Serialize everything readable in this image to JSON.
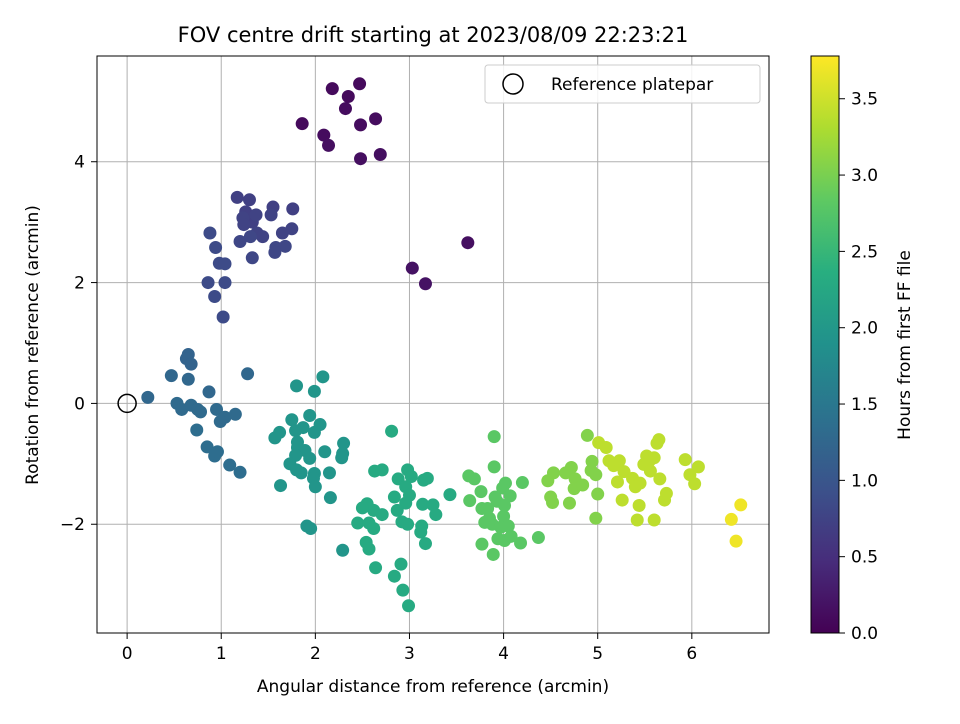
{
  "chart_data": {
    "type": "scatter",
    "title": "FOV centre drift starting at 2023/08/09 22:23:21",
    "xlabel": "Angular distance from reference (arcmin)",
    "ylabel": "Rotation from reference (arcmin)",
    "xlim": [
      -0.32,
      6.82
    ],
    "ylim": [
      -3.8,
      5.75
    ],
    "x_ticks": [
      0,
      1,
      2,
      3,
      4,
      5,
      6
    ],
    "y_ticks": [
      -2,
      0,
      2,
      4
    ],
    "grid": true,
    "legend": {
      "position": "top-right",
      "entries": [
        "Reference platepar"
      ]
    },
    "reference_point": {
      "x": 0,
      "y": 0,
      "label": "Reference platepar"
    },
    "colorbar": {
      "label": "Hours from first FF file",
      "colormap": "viridis",
      "range": [
        0.0,
        3.78
      ],
      "ticks": [
        "0.0",
        "0.5",
        "1.0",
        "1.5",
        "2.0",
        "2.5",
        "3.0",
        "3.5"
      ]
    },
    "points": [
      [
        1.86,
        4.63,
        0.1
      ],
      [
        2.18,
        5.21,
        0.1
      ],
      [
        2.35,
        5.08,
        0.1
      ],
      [
        2.47,
        5.29,
        0.1
      ],
      [
        2.32,
        4.88,
        0.12
      ],
      [
        2.64,
        4.71,
        0.12
      ],
      [
        2.09,
        4.44,
        0.12
      ],
      [
        2.48,
        4.61,
        0.12
      ],
      [
        2.14,
        4.27,
        0.15
      ],
      [
        2.48,
        4.05,
        0.15
      ],
      [
        2.69,
        4.12,
        0.15
      ],
      [
        3.62,
        2.66,
        0.15
      ],
      [
        3.03,
        2.24,
        0.18
      ],
      [
        3.17,
        1.98,
        0.18
      ],
      [
        1.17,
        3.41,
        0.72
      ],
      [
        1.3,
        3.37,
        0.72
      ],
      [
        1.26,
        3.17,
        0.72
      ],
      [
        1.33,
        3.0,
        0.72
      ],
      [
        1.55,
        3.25,
        0.72
      ],
      [
        1.76,
        3.22,
        0.72
      ],
      [
        1.23,
        3.07,
        0.75
      ],
      [
        1.37,
        3.12,
        0.75
      ],
      [
        1.53,
        3.12,
        0.75
      ],
      [
        1.24,
        2.96,
        0.75
      ],
      [
        1.38,
        2.82,
        0.75
      ],
      [
        1.44,
        2.76,
        0.75
      ],
      [
        1.65,
        2.82,
        0.75
      ],
      [
        1.75,
        2.89,
        0.75
      ],
      [
        1.2,
        2.68,
        0.8
      ],
      [
        1.31,
        2.76,
        0.8
      ],
      [
        1.58,
        2.58,
        0.8
      ],
      [
        1.68,
        2.6,
        0.8
      ],
      [
        1.33,
        2.41,
        0.8
      ],
      [
        1.57,
        2.5,
        0.8
      ],
      [
        0.88,
        2.82,
        0.85
      ],
      [
        0.94,
        2.58,
        0.85
      ],
      [
        0.98,
        2.32,
        0.85
      ],
      [
        1.04,
        2.31,
        0.85
      ],
      [
        0.86,
        2.0,
        0.85
      ],
      [
        1.04,
        2.0,
        0.85
      ],
      [
        0.93,
        1.77,
        0.85
      ],
      [
        1.02,
        1.43,
        0.85
      ],
      [
        0.65,
        0.81,
        1.2
      ],
      [
        0.63,
        0.74,
        1.2
      ],
      [
        0.68,
        0.65,
        1.2
      ],
      [
        0.65,
        0.4,
        1.25
      ],
      [
        0.47,
        0.46,
        1.25
      ],
      [
        0.87,
        0.19,
        1.25
      ],
      [
        1.28,
        0.49,
        1.25
      ],
      [
        0.22,
        0.1,
        1.25
      ],
      [
        0.53,
        0.0,
        1.3
      ],
      [
        0.58,
        -0.1,
        1.3
      ],
      [
        0.68,
        -0.03,
        1.3
      ],
      [
        0.75,
        -0.1,
        1.3
      ],
      [
        0.78,
        -0.14,
        1.3
      ],
      [
        0.95,
        -0.1,
        1.3
      ],
      [
        1.04,
        -0.23,
        1.3
      ],
      [
        1.15,
        -0.18,
        1.3
      ],
      [
        0.99,
        -0.3,
        1.3
      ],
      [
        0.74,
        -0.44,
        1.35
      ],
      [
        0.85,
        -0.72,
        1.35
      ],
      [
        0.93,
        -0.87,
        1.35
      ],
      [
        0.96,
        -0.8,
        1.35
      ],
      [
        1.09,
        -1.02,
        1.35
      ],
      [
        1.2,
        -1.14,
        1.35
      ],
      [
        1.8,
        0.29,
        1.95
      ],
      [
        1.99,
        0.2,
        1.95
      ],
      [
        2.08,
        0.44,
        1.95
      ],
      [
        1.94,
        -0.2,
        1.95
      ],
      [
        1.75,
        -0.27,
        1.95
      ],
      [
        1.87,
        -0.4,
        1.95
      ],
      [
        1.79,
        -0.45,
        1.95
      ],
      [
        2.05,
        -0.35,
        1.95
      ],
      [
        1.99,
        -0.48,
        1.95
      ],
      [
        1.62,
        -0.48,
        1.95
      ],
      [
        1.57,
        -0.57,
        1.95
      ],
      [
        1.81,
        -0.64,
        1.95
      ],
      [
        1.81,
        -0.73,
        1.95
      ],
      [
        1.89,
        -0.78,
        1.95
      ],
      [
        1.79,
        -0.86,
        1.95
      ],
      [
        1.94,
        -0.91,
        1.95
      ],
      [
        2.1,
        -0.8,
        1.95
      ],
      [
        2.3,
        -0.66,
        1.95
      ],
      [
        2.29,
        -0.83,
        1.95
      ],
      [
        2.28,
        -0.9,
        1.95
      ],
      [
        1.73,
        -1.0,
        1.95
      ],
      [
        1.8,
        -1.1,
        1.95
      ],
      [
        1.85,
        -1.15,
        1.95
      ],
      [
        1.99,
        -1.16,
        1.95
      ],
      [
        1.98,
        -1.24,
        1.95
      ],
      [
        2.15,
        -1.15,
        1.95
      ],
      [
        1.63,
        -1.36,
        1.95
      ],
      [
        2.0,
        -1.38,
        1.95
      ],
      [
        2.16,
        -1.56,
        1.95
      ],
      [
        1.91,
        -2.03,
        1.95
      ],
      [
        1.95,
        -2.07,
        1.95
      ],
      [
        2.29,
        -2.43,
        1.95
      ],
      [
        2.81,
        -0.46,
        2.3
      ],
      [
        2.63,
        -1.12,
        2.3
      ],
      [
        2.71,
        -1.1,
        2.3
      ],
      [
        2.88,
        -1.25,
        2.3
      ],
      [
        2.98,
        -1.1,
        2.3
      ],
      [
        3.02,
        -1.21,
        2.3
      ],
      [
        2.96,
        -1.38,
        2.3
      ],
      [
        3.15,
        -1.27,
        2.3
      ],
      [
        3.19,
        -1.24,
        2.3
      ],
      [
        3.0,
        -1.52,
        2.3
      ],
      [
        2.84,
        -1.55,
        2.3
      ],
      [
        2.96,
        -1.65,
        2.3
      ],
      [
        2.62,
        -1.77,
        2.3
      ],
      [
        2.71,
        -1.84,
        2.3
      ],
      [
        2.87,
        -1.77,
        2.3
      ],
      [
        2.55,
        -1.66,
        2.3
      ],
      [
        2.5,
        -1.73,
        2.3
      ],
      [
        2.45,
        -1.98,
        2.3
      ],
      [
        2.57,
        -1.98,
        2.3
      ],
      [
        2.62,
        -2.07,
        2.3
      ],
      [
        3.14,
        -1.67,
        2.3
      ],
      [
        3.25,
        -1.68,
        2.3
      ],
      [
        3.43,
        -1.51,
        2.3
      ],
      [
        3.28,
        -1.84,
        2.3
      ],
      [
        2.92,
        -1.96,
        2.3
      ],
      [
        2.98,
        -2.0,
        2.3
      ],
      [
        3.13,
        -2.03,
        2.3
      ],
      [
        3.12,
        -2.13,
        2.3
      ],
      [
        3.17,
        -2.32,
        2.3
      ],
      [
        2.54,
        -2.3,
        2.3
      ],
      [
        2.57,
        -2.41,
        2.3
      ],
      [
        2.64,
        -2.72,
        2.3
      ],
      [
        2.91,
        -2.66,
        2.3
      ],
      [
        2.84,
        -2.86,
        2.3
      ],
      [
        2.93,
        -3.09,
        2.3
      ],
      [
        2.99,
        -3.35,
        2.3
      ],
      [
        3.9,
        -0.55,
        2.8
      ],
      [
        3.9,
        -1.05,
        2.8
      ],
      [
        3.63,
        -1.2,
        2.8
      ],
      [
        3.69,
        -1.25,
        2.8
      ],
      [
        3.76,
        -1.46,
        2.8
      ],
      [
        3.64,
        -1.61,
        2.8
      ],
      [
        3.77,
        -1.74,
        2.8
      ],
      [
        3.83,
        -1.74,
        2.8
      ],
      [
        3.91,
        -1.55,
        2.8
      ],
      [
        3.93,
        -1.62,
        2.8
      ],
      [
        3.99,
        -1.4,
        2.8
      ],
      [
        4.02,
        -1.32,
        2.8
      ],
      [
        4.07,
        -1.53,
        2.8
      ],
      [
        4.01,
        -1.69,
        2.8
      ],
      [
        4.0,
        -1.87,
        2.8
      ],
      [
        3.85,
        -1.9,
        2.8
      ],
      [
        3.8,
        -1.97,
        2.8
      ],
      [
        3.88,
        -2.0,
        2.8
      ],
      [
        3.97,
        -2.05,
        2.8
      ],
      [
        4.05,
        -2.03,
        2.8
      ],
      [
        3.94,
        -2.24,
        2.8
      ],
      [
        4.01,
        -2.27,
        2.8
      ],
      [
        4.08,
        -2.2,
        2.8
      ],
      [
        4.18,
        -2.31,
        2.8
      ],
      [
        4.37,
        -2.22,
        2.8
      ],
      [
        3.77,
        -2.33,
        2.8
      ],
      [
        3.89,
        -2.5,
        2.8
      ],
      [
        4.2,
        -1.31,
        2.8
      ],
      [
        4.72,
        -1.06,
        3.05
      ],
      [
        4.66,
        -1.15,
        3.05
      ],
      [
        4.76,
        -1.25,
        3.05
      ],
      [
        4.53,
        -1.15,
        3.05
      ],
      [
        4.47,
        -1.28,
        3.05
      ],
      [
        4.75,
        -1.41,
        3.05
      ],
      [
        4.5,
        -1.55,
        3.05
      ],
      [
        4.52,
        -1.64,
        3.05
      ],
      [
        4.7,
        -1.65,
        3.05
      ],
      [
        4.84,
        -1.35,
        3.05
      ],
      [
        4.94,
        -0.96,
        3.05
      ],
      [
        4.93,
        -1.11,
        3.05
      ],
      [
        4.98,
        -1.18,
        3.05
      ],
      [
        5.0,
        -1.5,
        3.05
      ],
      [
        4.89,
        -0.53,
        3.05
      ],
      [
        4.98,
        -1.9,
        3.05
      ],
      [
        5.01,
        -0.65,
        3.4
      ],
      [
        5.09,
        -0.73,
        3.4
      ],
      [
        5.12,
        -0.95,
        3.4
      ],
      [
        5.17,
        -1.03,
        3.4
      ],
      [
        5.23,
        -0.95,
        3.4
      ],
      [
        5.28,
        -1.13,
        3.4
      ],
      [
        5.21,
        -1.3,
        3.4
      ],
      [
        5.37,
        -1.24,
        3.4
      ],
      [
        5.4,
        -1.38,
        3.4
      ],
      [
        5.45,
        -1.32,
        3.4
      ],
      [
        5.44,
        -1.69,
        3.4
      ],
      [
        5.42,
        -1.93,
        3.4
      ],
      [
        5.49,
        -1.01,
        3.4
      ],
      [
        5.52,
        -0.87,
        3.4
      ],
      [
        5.55,
        -0.95,
        3.4
      ],
      [
        5.56,
        -1.12,
        3.4
      ],
      [
        5.6,
        -0.9,
        3.4
      ],
      [
        5.63,
        -0.66,
        3.4
      ],
      [
        5.65,
        -0.6,
        3.4
      ],
      [
        5.6,
        -1.93,
        3.4
      ],
      [
        5.66,
        -1.25,
        3.4
      ],
      [
        5.71,
        -1.6,
        3.4
      ],
      [
        5.73,
        -1.49,
        3.4
      ],
      [
        5.26,
        -1.6,
        3.4
      ],
      [
        5.93,
        -0.93,
        3.4
      ],
      [
        5.98,
        -1.18,
        3.4
      ],
      [
        6.03,
        -1.33,
        3.4
      ],
      [
        6.07,
        -1.05,
        3.4
      ],
      [
        6.42,
        -1.92,
        3.7
      ],
      [
        6.47,
        -2.28,
        3.7
      ],
      [
        6.52,
        -1.68,
        3.7
      ]
    ]
  }
}
